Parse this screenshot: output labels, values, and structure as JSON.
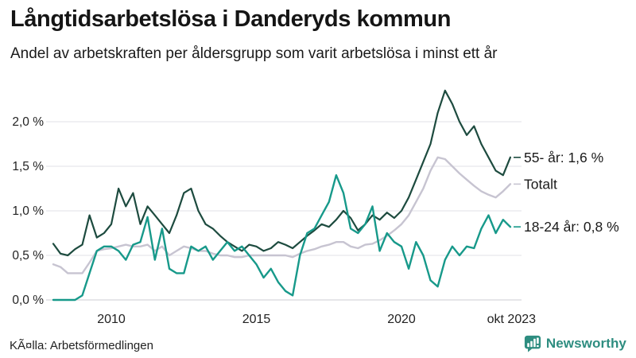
{
  "header": {
    "title": "Långtidsarbetslösa i Danderyds kommun",
    "subtitle": "Andel av arbetskraften per åldersgrupp som varit arbetslösa i minst ett år"
  },
  "source": {
    "text": "KÃ¤lla: Arbetsförmedlingen"
  },
  "brand": {
    "name": "Newsworthy",
    "color": "#2e8d80"
  },
  "chart_data": {
    "type": "line",
    "title": "Långtidsarbetslösa i Danderyds kommun",
    "subtitle": "Andel av arbetskraften per åldersgrupp som varit arbetslösa i minst ett år",
    "x_unit": "year (monthly series shown, sampled quarterly)",
    "x_start": 2008.0,
    "x_step": 0.25,
    "x_range": [
      2007.8,
      2023.95
    ],
    "ylim": [
      0,
      2.45
    ],
    "grid": true,
    "legend_position": "right-inline-annotations",
    "yticks": [
      {
        "value": 0.0,
        "label": "0,0 %"
      },
      {
        "value": 0.5,
        "label": "0,5 %"
      },
      {
        "value": 1.0,
        "label": "1,0 %"
      },
      {
        "value": 1.5,
        "label": "1,5 %"
      },
      {
        "value": 2.0,
        "label": "2,0 %"
      }
    ],
    "xticks": [
      {
        "value": 2010,
        "label": "2010"
      },
      {
        "value": 2015,
        "label": "2015"
      },
      {
        "value": 2020,
        "label": "2020"
      },
      {
        "value": 2023.79,
        "label": "okt 2023"
      }
    ],
    "colors": {
      "grid": "#e8e8ec",
      "axis": "#d8d8dc",
      "tick_text": "#222222",
      "annotation_text": "#1a1a1a"
    },
    "draw_order": [
      1,
      0,
      2
    ],
    "series": [
      {
        "name": "55- år",
        "label": "55- år: 1,6 %",
        "final_value": 1.6,
        "color": "#1d4b3f",
        "stroke_width": 2.2,
        "values": [
          0.63,
          0.52,
          0.5,
          0.57,
          0.62,
          0.95,
          0.7,
          0.75,
          0.85,
          1.25,
          1.05,
          1.2,
          0.85,
          1.05,
          0.95,
          0.85,
          0.75,
          0.95,
          1.2,
          1.25,
          1.0,
          0.85,
          0.8,
          0.72,
          0.65,
          0.6,
          0.55,
          0.62,
          0.6,
          0.55,
          0.58,
          0.65,
          0.62,
          0.58,
          0.65,
          0.72,
          0.78,
          0.85,
          0.82,
          0.9,
          1.0,
          0.92,
          0.78,
          0.85,
          0.95,
          0.9,
          0.98,
          0.92,
          1.0,
          1.15,
          1.35,
          1.55,
          1.75,
          2.1,
          2.35,
          2.2,
          2.0,
          1.85,
          1.95,
          1.75,
          1.6,
          1.45,
          1.4,
          1.6
        ]
      },
      {
        "name": "Totalt",
        "label": "Totalt",
        "final_value": 1.3,
        "color": "#c7c4d1",
        "stroke_width": 2.4,
        "values": [
          0.4,
          0.37,
          0.3,
          0.3,
          0.3,
          0.42,
          0.55,
          0.57,
          0.58,
          0.6,
          0.62,
          0.6,
          0.6,
          0.62,
          0.55,
          0.6,
          0.5,
          0.55,
          0.6,
          0.58,
          0.55,
          0.55,
          0.52,
          0.5,
          0.5,
          0.48,
          0.48,
          0.5,
          0.5,
          0.5,
          0.5,
          0.5,
          0.5,
          0.48,
          0.52,
          0.55,
          0.57,
          0.6,
          0.62,
          0.65,
          0.65,
          0.6,
          0.58,
          0.62,
          0.63,
          0.67,
          0.72,
          0.78,
          0.85,
          0.95,
          1.1,
          1.25,
          1.45,
          1.6,
          1.58,
          1.5,
          1.42,
          1.35,
          1.28,
          1.22,
          1.18,
          1.15,
          1.22,
          1.3
        ]
      },
      {
        "name": "18-24 år",
        "label": "18-24 år: 0,8 %",
        "final_value": 0.8,
        "color": "#17998a",
        "stroke_width": 2.4,
        "values": [
          0.0,
          0.0,
          0.0,
          0.0,
          0.05,
          0.3,
          0.55,
          0.6,
          0.6,
          0.55,
          0.45,
          0.62,
          0.65,
          0.93,
          0.45,
          0.8,
          0.35,
          0.3,
          0.3,
          0.6,
          0.55,
          0.6,
          0.45,
          0.55,
          0.65,
          0.55,
          0.6,
          0.5,
          0.4,
          0.25,
          0.35,
          0.2,
          0.1,
          0.05,
          0.5,
          0.75,
          0.8,
          0.95,
          1.1,
          1.4,
          1.2,
          0.8,
          0.75,
          0.85,
          1.05,
          0.55,
          0.75,
          0.65,
          0.6,
          0.35,
          0.65,
          0.5,
          0.22,
          0.15,
          0.45,
          0.6,
          0.5,
          0.6,
          0.58,
          0.8,
          0.95,
          0.75,
          0.9,
          0.82
        ]
      }
    ]
  }
}
